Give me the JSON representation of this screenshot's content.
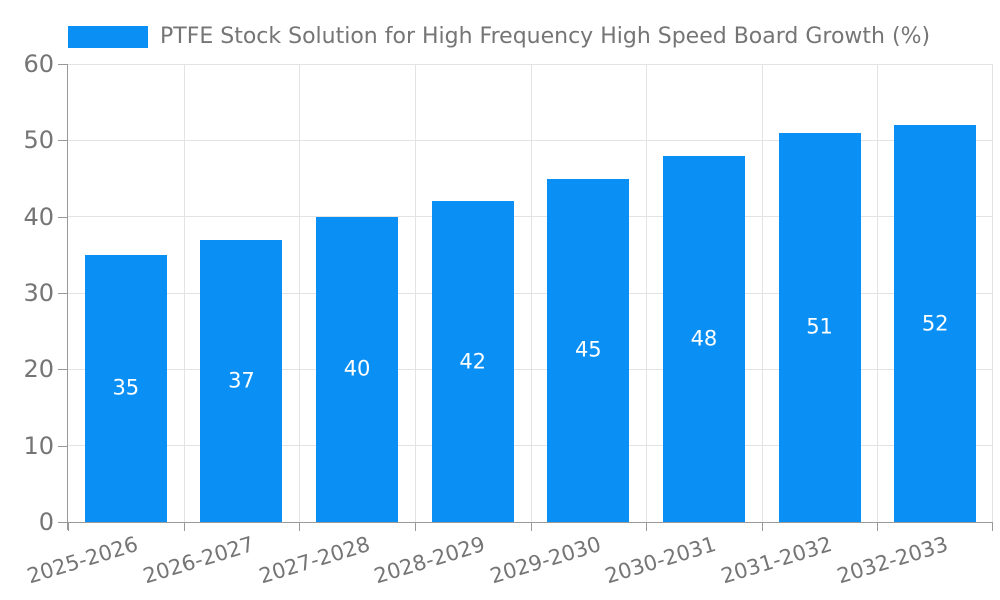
{
  "legend": {
    "label": "PTFE Stock Solution for High Frequency High Speed Board Growth (%)"
  },
  "chart_data": {
    "type": "bar",
    "title": "PTFE Stock Solution for High Frequency High Speed Board Growth (%)",
    "categories": [
      "2025-2026",
      "2026-2027",
      "2027-2028",
      "2028-2029",
      "2029-2030",
      "2030-2031",
      "2031-2032",
      "2032-2033"
    ],
    "values": [
      35,
      37,
      40,
      42,
      45,
      48,
      51,
      52
    ],
    "xlabel": "",
    "ylabel": "",
    "ylim": [
      0,
      60
    ],
    "yticks": [
      0,
      10,
      20,
      30,
      40,
      50,
      60
    ],
    "grid": true,
    "legend_position": "top-left",
    "x_label_rotation_deg": -17,
    "colors": {
      "bar": "#0a90f5",
      "value_label": "#ffffff",
      "axis": "#999999",
      "gridline": "#e3e3e3",
      "tick_text": "#757575"
    }
  }
}
